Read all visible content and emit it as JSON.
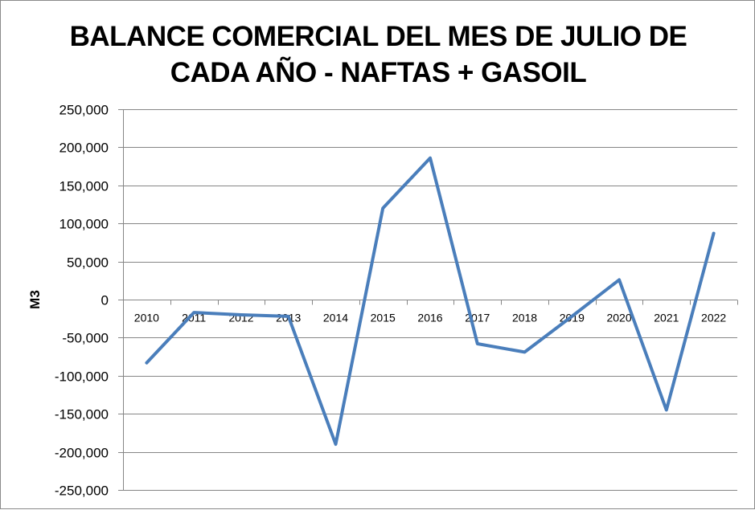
{
  "chart_data": {
    "type": "line",
    "title_lines": [
      "BALANCE COMERCIAL DEL MES DE JULIO DE",
      "CADA AÑO - NAFTAS + GASOIL"
    ],
    "ylabel": "M3",
    "xlabel": "",
    "categories": [
      "2010",
      "2011",
      "2012",
      "2013",
      "2014",
      "2015",
      "2016",
      "2017",
      "2018",
      "2019",
      "2020",
      "2021",
      "2022"
    ],
    "series": [
      {
        "color": "#4a7ebb",
        "values": [
          -83000,
          -17000,
          -20000,
          -22000,
          -190000,
          120000,
          186000,
          -58000,
          -69000,
          -22000,
          26000,
          -145000,
          87000
        ]
      }
    ],
    "ylim": [
      -250000,
      250000
    ],
    "yticks": [
      250000,
      200000,
      150000,
      100000,
      50000,
      0,
      -50000,
      -100000,
      -150000,
      -200000,
      -250000
    ],
    "ytick_labels": [
      "250,000",
      "200,000",
      "150,000",
      "100,000",
      "50,000",
      "0",
      "-50,000",
      "-100,000",
      "-150,000",
      "-200,000",
      "-250,000"
    ],
    "grid": true,
    "gridline_color": "#868686",
    "legend": "none"
  }
}
